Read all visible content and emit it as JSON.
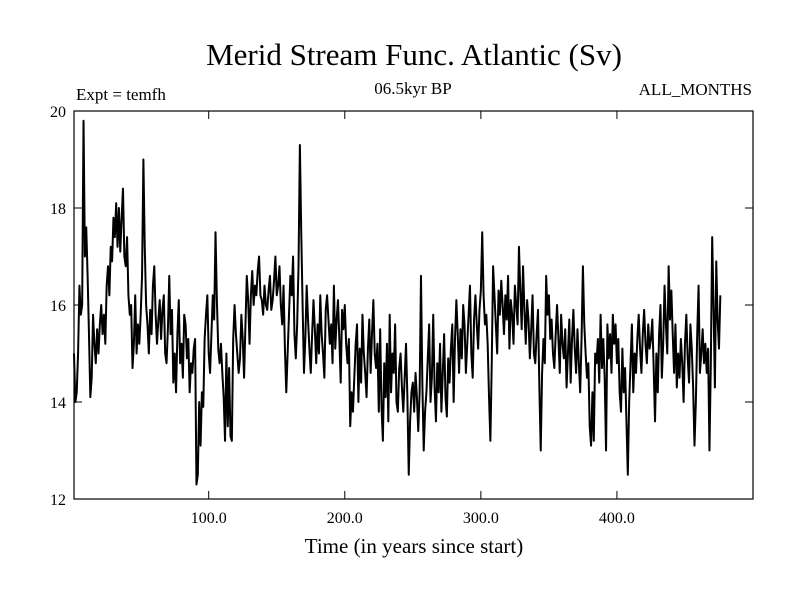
{
  "chart_data": {
    "type": "line",
    "title": "Merid Stream Func. Atlantic (Sv)",
    "subtitle_left": "Expt = temfh",
    "subtitle_center": "06.5kyr BP",
    "subtitle_right": "ALL_MONTHS",
    "xlabel": "Time (in years since start)",
    "ylabel": "",
    "xlim": [
      1,
      500
    ],
    "ylim": [
      12,
      20
    ],
    "x_ticks": [
      100,
      200,
      300,
      400
    ],
    "x_tick_labels": [
      "100.0",
      "200.0",
      "300.0",
      "400.0"
    ],
    "y_ticks": [
      12,
      14,
      16,
      18,
      20
    ],
    "y_tick_labels": [
      "12",
      "14",
      "16",
      "18",
      "20"
    ],
    "grid": false,
    "legend": "none",
    "line_color": "#000000",
    "series": [
      {
        "name": "Merid Stream Func. Atlantic",
        "x_start": 1,
        "x_step": 1,
        "values": [
          15.0,
          14.0,
          14.2,
          15.0,
          16.4,
          15.8,
          16.0,
          19.8,
          17.0,
          17.6,
          16.6,
          15.4,
          14.1,
          14.5,
          15.8,
          15.2,
          14.8,
          15.5,
          15.0,
          15.6,
          16.0,
          15.4,
          15.8,
          15.2,
          16.4,
          16.8,
          16.2,
          17.2,
          16.9,
          17.8,
          17.4,
          18.1,
          17.2,
          18.0,
          17.1,
          17.8,
          18.4,
          17.0,
          16.8,
          17.4,
          16.2,
          15.8,
          16.0,
          14.7,
          15.2,
          16.2,
          15.0,
          15.6,
          15.2,
          15.8,
          16.6,
          19.0,
          17.2,
          16.0,
          15.6,
          15.0,
          15.9,
          15.4,
          16.4,
          16.8,
          15.8,
          15.2,
          15.7,
          16.1,
          15.3,
          15.9,
          16.2,
          15.0,
          14.8,
          15.5,
          16.6,
          15.4,
          15.9,
          14.4,
          15.0,
          14.2,
          15.4,
          16.1,
          14.8,
          15.2,
          14.5,
          15.8,
          15.6,
          14.9,
          15.3,
          14.2,
          14.8,
          14.6,
          15.1,
          15.3,
          12.3,
          12.5,
          14.0,
          13.1,
          14.2,
          13.9,
          15.3,
          15.8,
          16.2,
          15.0,
          14.6,
          15.4,
          16.2,
          15.7,
          17.5,
          16.1,
          15.1,
          14.8,
          15.2,
          14.6,
          14.1,
          13.2,
          15.0,
          13.5,
          14.7,
          13.3,
          13.2,
          15.3,
          16.0,
          15.4,
          15.0,
          14.6,
          14.9,
          15.8,
          15.3,
          14.5,
          15.6,
          16.6,
          16.1,
          15.2,
          16.2,
          16.7,
          16.0,
          16.4,
          16.2,
          16.7,
          17.0,
          16.2,
          16.1,
          15.8,
          16.4,
          16.0,
          15.9,
          16.3,
          16.6,
          15.9,
          16.1,
          16.5,
          17.0,
          16.2,
          16.4,
          16.8,
          16.0,
          15.6,
          16.4,
          15.1,
          14.2,
          15.0,
          15.8,
          16.6,
          16.2,
          17.0,
          15.4,
          14.9,
          15.6,
          16.8,
          19.3,
          17.5,
          16.0,
          14.6,
          15.3,
          16.4,
          15.7,
          15.1,
          14.6,
          15.4,
          16.1,
          15.5,
          14.8,
          15.6,
          15.0,
          16.2,
          15.4,
          15.0,
          14.5,
          15.9,
          16.2,
          15.7,
          15.2,
          15.6,
          14.8,
          16.4,
          15.1,
          15.7,
          16.1,
          15.3,
          14.4,
          15.9,
          15.5,
          16.0,
          15.2,
          14.8,
          15.3,
          13.5,
          14.2,
          13.8,
          14.5,
          15.2,
          15.6,
          14.0,
          15.1,
          14.4,
          15.8,
          15.0,
          14.6,
          14.1,
          15.1,
          15.7,
          14.6,
          15.4,
          16.1,
          15.0,
          14.7,
          15.2,
          13.8,
          15.5,
          13.9,
          13.2,
          14.8,
          14.1,
          15.2,
          13.6,
          15.8,
          14.2,
          15.0,
          14.6,
          15.6,
          14.0,
          13.8,
          14.7,
          15.0,
          14.3,
          13.8,
          14.5,
          15.2,
          14.1,
          12.5,
          13.6,
          14.2,
          14.4,
          13.8,
          14.6,
          14.1,
          13.4,
          14.2,
          16.6,
          14.4,
          13.0,
          13.8,
          14.2,
          14.9,
          15.6,
          14.0,
          14.5,
          15.8,
          14.3,
          13.6,
          14.8,
          14.2,
          15.2,
          13.8,
          14.6,
          15.4,
          14.1,
          13.7,
          14.9,
          14.4,
          15.1,
          15.6,
          14.0,
          15.3,
          16.1,
          15.4,
          14.6,
          15.5,
          14.9,
          16.0,
          15.6,
          14.6,
          15.2,
          15.8,
          16.4,
          15.0,
          14.5,
          15.7,
          16.2,
          15.6,
          15.1,
          15.9,
          16.3,
          17.5,
          16.2,
          15.6,
          15.8,
          15.2,
          14.1,
          13.2,
          14.8,
          16.8,
          16.2,
          15.6,
          15.0,
          16.3,
          15.8,
          16.5,
          16.0,
          15.4,
          16.2,
          15.7,
          16.6,
          15.1,
          16.1,
          15.8,
          15.2,
          16.4,
          16.0,
          15.6,
          17.2,
          16.3,
          15.5,
          16.8,
          15.9,
          15.2,
          16.1,
          15.7,
          14.9,
          15.5,
          16.2,
          15.0,
          14.8,
          15.4,
          15.9,
          14.3,
          13.0,
          14.6,
          15.3,
          14.8,
          16.6,
          15.8,
          16.2,
          15.3,
          15.7,
          15.0,
          14.7,
          15.4,
          16.0,
          15.3,
          14.6,
          15.8,
          15.2,
          14.9,
          15.5,
          14.3,
          15.0,
          15.7,
          14.4,
          15.3,
          15.9,
          15.1,
          14.6,
          15.5,
          14.8,
          14.2,
          15.3,
          16.8,
          15.6,
          15.0,
          14.5,
          14.8,
          13.5,
          13.1,
          14.2,
          13.2,
          15.0,
          14.8,
          15.3,
          14.4,
          15.8,
          14.7,
          15.3,
          14.5,
          13.0,
          15.6,
          14.9,
          15.4,
          14.6,
          15.8,
          15.2,
          15.6,
          14.8,
          15.3,
          14.2,
          13.8,
          15.1,
          14.2,
          14.7,
          13.6,
          12.5,
          14.0,
          14.8,
          15.6,
          14.2,
          15.0,
          14.6,
          15.3,
          15.8,
          15.1,
          14.6,
          15.4,
          15.9,
          15.2,
          14.8,
          15.6,
          15.1,
          15.3,
          15.7,
          14.7,
          13.6,
          15.0,
          14.2,
          15.4,
          16.0,
          14.5,
          15.2,
          16.4,
          15.6,
          15.0,
          16.8,
          15.7,
          16.3,
          15.4,
          14.6,
          15.6,
          14.3,
          15.0,
          14.5,
          15.3,
          14.8,
          14.0,
          15.2,
          15.8,
          14.9,
          14.4,
          15.6,
          15.1,
          14.3,
          13.1,
          14.0,
          15.4,
          16.4,
          14.6,
          15.0,
          15.5,
          14.8,
          15.2,
          14.6,
          15.1,
          13.0,
          14.8,
          17.4,
          16.0,
          14.3,
          16.9,
          15.7,
          15.1,
          16.2
        ]
      }
    ]
  }
}
